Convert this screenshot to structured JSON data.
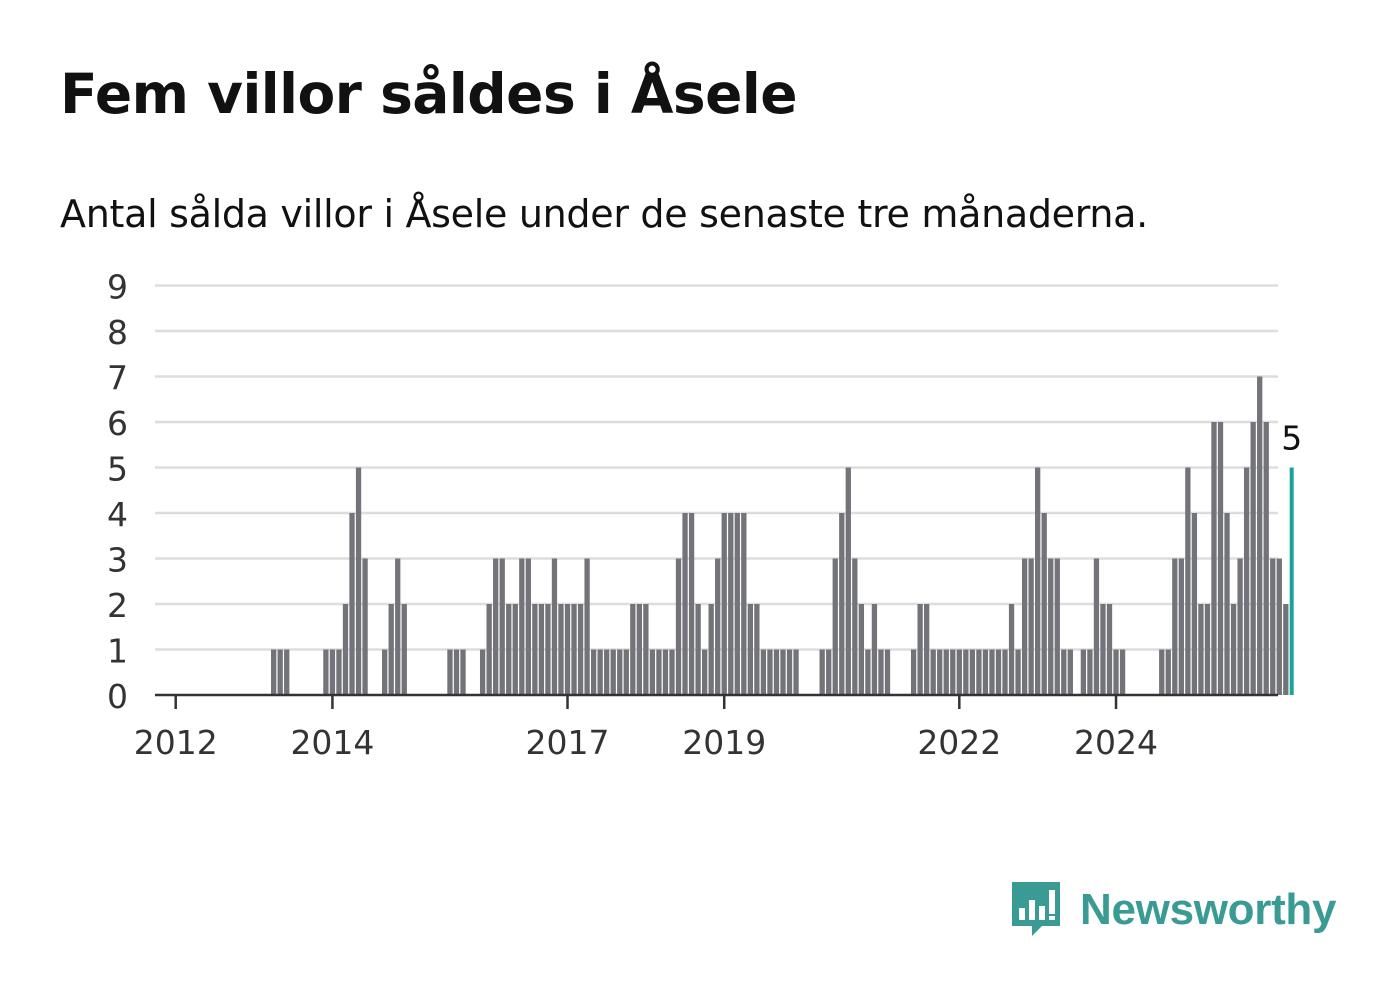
{
  "header": {
    "title": "Fem villor såldes i Åsele",
    "subtitle": "Antal sålda villor i Åsele under de senaste tre månaderna."
  },
  "brand": {
    "name": "Newsworthy",
    "icon": "newsworthy-logo-icon",
    "color": "#3a9b94"
  },
  "colors": {
    "bar": "#73737a",
    "highlight": "#1aa39a",
    "grid": "#dddddd",
    "axis": "#333333"
  },
  "chart_data": {
    "type": "bar",
    "title": "Fem villor såldes i Åsele",
    "subtitle": "Antal sålda villor i Åsele under de senaste tre månaderna.",
    "ylim": [
      0,
      9
    ],
    "yticks": [
      0,
      1,
      2,
      3,
      4,
      5,
      6,
      7,
      8,
      9
    ],
    "grid": true,
    "frequency": "monthly, rolling three-month total",
    "start_month": "2011-11",
    "xticks": [
      "2012",
      "2014",
      "2017",
      "2019",
      "2022",
      "2024"
    ],
    "values": [
      0,
      0,
      0,
      0,
      0,
      0,
      0,
      0,
      0,
      0,
      0,
      0,
      0,
      0,
      0,
      0,
      0,
      1,
      1,
      1,
      0,
      0,
      0,
      0,
      0,
      1,
      1,
      1,
      2,
      4,
      5,
      3,
      0,
      0,
      1,
      2,
      3,
      2,
      0,
      0,
      0,
      0,
      0,
      0,
      1,
      1,
      1,
      0,
      0,
      1,
      2,
      3,
      3,
      2,
      2,
      3,
      3,
      2,
      2,
      2,
      3,
      2,
      2,
      2,
      2,
      3,
      1,
      1,
      1,
      1,
      1,
      1,
      2,
      2,
      2,
      1,
      1,
      1,
      1,
      3,
      4,
      4,
      2,
      1,
      2,
      3,
      4,
      4,
      4,
      4,
      2,
      2,
      1,
      1,
      1,
      1,
      1,
      1,
      0,
      0,
      0,
      1,
      1,
      3,
      4,
      5,
      3,
      2,
      1,
      2,
      1,
      1,
      0,
      0,
      0,
      1,
      2,
      2,
      1,
      1,
      1,
      1,
      1,
      1,
      1,
      1,
      1,
      1,
      1,
      1,
      2,
      1,
      3,
      3,
      5,
      4,
      3,
      3,
      1,
      1,
      0,
      1,
      1,
      3,
      2,
      2,
      1,
      1,
      0,
      0,
      0,
      0,
      0,
      1,
      1,
      3,
      3,
      5,
      4,
      2,
      2,
      6,
      6,
      4,
      2,
      3,
      5,
      6,
      7,
      6,
      3,
      3,
      2,
      5
    ],
    "highlight_label": "5"
  }
}
